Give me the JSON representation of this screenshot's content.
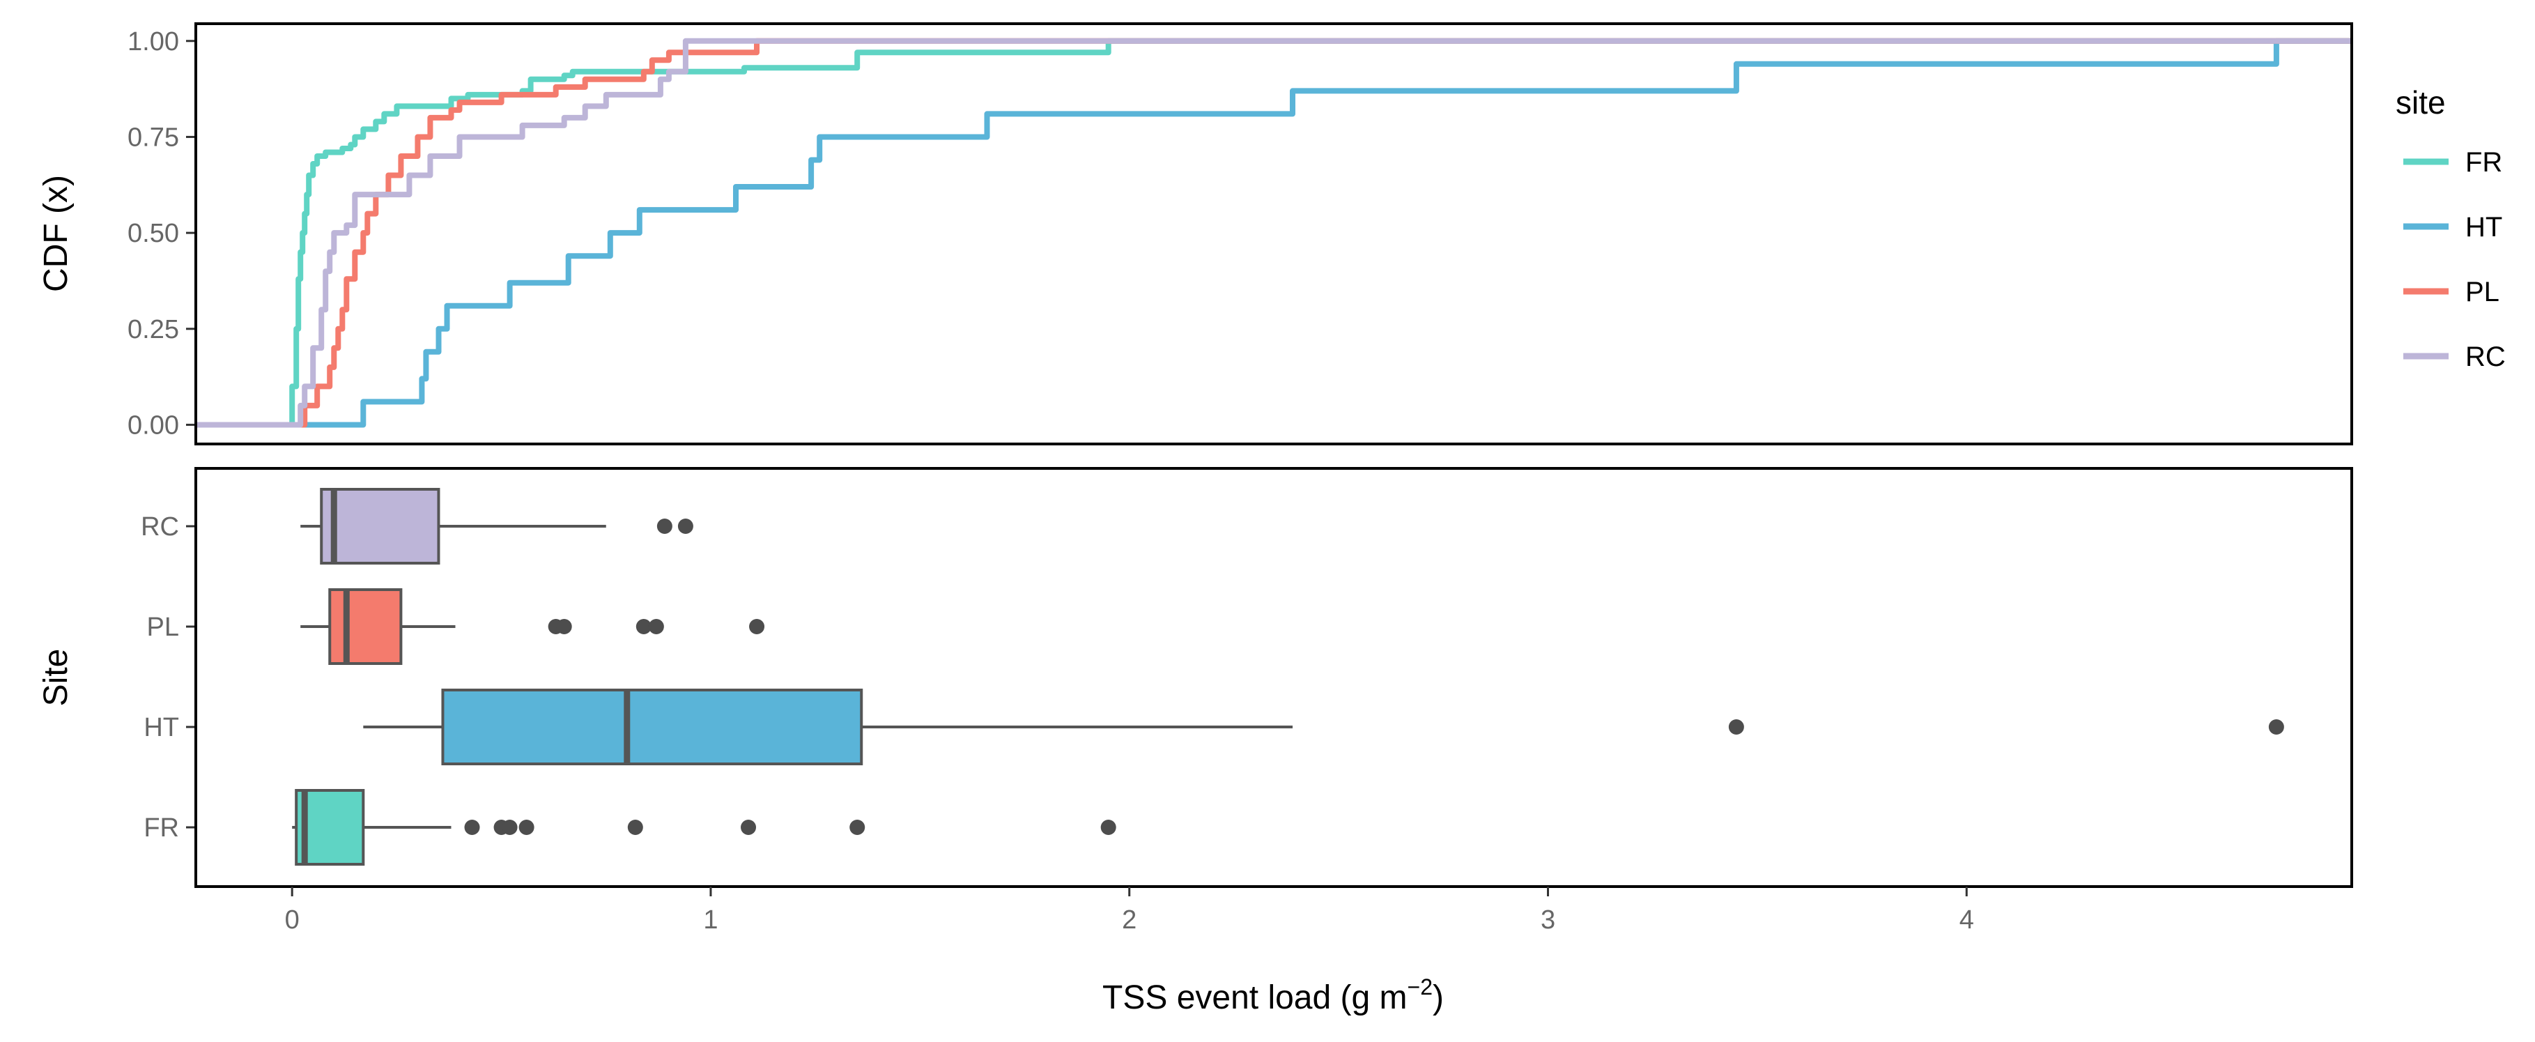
{
  "chart_data": [
    {
      "type": "line",
      "subtype": "ecdf",
      "title": "",
      "xlabel": "",
      "ylabel": "CDF (x)",
      "xlim": [
        -0.23,
        4.92
      ],
      "ylim": [
        -0.05,
        1.045
      ],
      "x_ticks": [
        0,
        1,
        2,
        3,
        4
      ],
      "y_ticks": [
        0,
        0.25,
        0.5,
        0.75,
        1
      ],
      "y_tick_labels": [
        "0.00",
        "0.25",
        "0.50",
        "0.75",
        "1.00"
      ],
      "legend": {
        "title": "site",
        "position": "right",
        "entries": [
          "FR",
          "HT",
          "PL",
          "RC"
        ]
      },
      "series": [
        {
          "name": "FR",
          "color": "#5fd4c4",
          "points": [
            [
              -0.23,
              0
            ],
            [
              0.0,
              0
            ],
            [
              0.0,
              0.1
            ],
            [
              0.01,
              0.25
            ],
            [
              0.015,
              0.38
            ],
            [
              0.02,
              0.45
            ],
            [
              0.025,
              0.5
            ],
            [
              0.03,
              0.55
            ],
            [
              0.035,
              0.6
            ],
            [
              0.04,
              0.65
            ],
            [
              0.05,
              0.68
            ],
            [
              0.06,
              0.7
            ],
            [
              0.08,
              0.71
            ],
            [
              0.12,
              0.72
            ],
            [
              0.14,
              0.73
            ],
            [
              0.15,
              0.75
            ],
            [
              0.17,
              0.77
            ],
            [
              0.2,
              0.79
            ],
            [
              0.22,
              0.81
            ],
            [
              0.25,
              0.83
            ],
            [
              0.35,
              0.83
            ],
            [
              0.38,
              0.85
            ],
            [
              0.42,
              0.86
            ],
            [
              0.55,
              0.87
            ],
            [
              0.57,
              0.9
            ],
            [
              0.65,
              0.91
            ],
            [
              0.67,
              0.92
            ],
            [
              0.82,
              0.92
            ],
            [
              1.08,
              0.93
            ],
            [
              1.35,
              0.97
            ],
            [
              1.95,
              0.99
            ],
            [
              1.95,
              1.0
            ],
            [
              4.92,
              1.0
            ]
          ]
        },
        {
          "name": "HT",
          "color": "#5ab4d8",
          "points": [
            [
              -0.23,
              0
            ],
            [
              0.17,
              0
            ],
            [
              0.17,
              0.06
            ],
            [
              0.31,
              0.06
            ],
            [
              0.31,
              0.12
            ],
            [
              0.32,
              0.12
            ],
            [
              0.32,
              0.19
            ],
            [
              0.35,
              0.19
            ],
            [
              0.35,
              0.25
            ],
            [
              0.37,
              0.25
            ],
            [
              0.37,
              0.31
            ],
            [
              0.52,
              0.31
            ],
            [
              0.52,
              0.37
            ],
            [
              0.66,
              0.37
            ],
            [
              0.66,
              0.44
            ],
            [
              0.76,
              0.44
            ],
            [
              0.76,
              0.5
            ],
            [
              0.83,
              0.5
            ],
            [
              0.83,
              0.56
            ],
            [
              1.06,
              0.56
            ],
            [
              1.06,
              0.62
            ],
            [
              1.24,
              0.62
            ],
            [
              1.24,
              0.69
            ],
            [
              1.26,
              0.69
            ],
            [
              1.26,
              0.75
            ],
            [
              1.66,
              0.75
            ],
            [
              1.66,
              0.81
            ],
            [
              2.39,
              0.81
            ],
            [
              2.39,
              0.87
            ],
            [
              3.45,
              0.87
            ],
            [
              3.45,
              0.94
            ],
            [
              4.74,
              0.94
            ],
            [
              4.74,
              1.0
            ],
            [
              4.92,
              1.0
            ]
          ]
        },
        {
          "name": "PL",
          "color": "#f47b6d",
          "points": [
            [
              -0.23,
              0
            ],
            [
              0.02,
              0
            ],
            [
              0.03,
              0.05
            ],
            [
              0.06,
              0.1
            ],
            [
              0.09,
              0.15
            ],
            [
              0.1,
              0.2
            ],
            [
              0.11,
              0.25
            ],
            [
              0.12,
              0.3
            ],
            [
              0.13,
              0.38
            ],
            [
              0.15,
              0.45
            ],
            [
              0.17,
              0.5
            ],
            [
              0.18,
              0.55
            ],
            [
              0.2,
              0.6
            ],
            [
              0.23,
              0.65
            ],
            [
              0.26,
              0.7
            ],
            [
              0.3,
              0.75
            ],
            [
              0.33,
              0.8
            ],
            [
              0.38,
              0.82
            ],
            [
              0.4,
              0.84
            ],
            [
              0.5,
              0.86
            ],
            [
              0.63,
              0.88
            ],
            [
              0.7,
              0.9
            ],
            [
              0.84,
              0.92
            ],
            [
              0.86,
              0.95
            ],
            [
              0.9,
              0.97
            ],
            [
              1.11,
              0.99
            ],
            [
              1.11,
              1.0
            ],
            [
              4.92,
              1.0
            ]
          ]
        },
        {
          "name": "RC",
          "color": "#bdb5d8",
          "points": [
            [
              -0.23,
              0
            ],
            [
              0.01,
              0
            ],
            [
              0.02,
              0.05
            ],
            [
              0.03,
              0.1
            ],
            [
              0.05,
              0.2
            ],
            [
              0.07,
              0.3
            ],
            [
              0.08,
              0.4
            ],
            [
              0.09,
              0.45
            ],
            [
              0.1,
              0.5
            ],
            [
              0.13,
              0.52
            ],
            [
              0.15,
              0.6
            ],
            [
              0.25,
              0.6
            ],
            [
              0.28,
              0.65
            ],
            [
              0.33,
              0.7
            ],
            [
              0.4,
              0.75
            ],
            [
              0.55,
              0.78
            ],
            [
              0.65,
              0.8
            ],
            [
              0.7,
              0.83
            ],
            [
              0.75,
              0.86
            ],
            [
              0.88,
              0.9
            ],
            [
              0.9,
              0.92
            ],
            [
              0.94,
              0.96
            ],
            [
              0.94,
              1.0
            ],
            [
              4.92,
              1.0
            ]
          ]
        }
      ]
    },
    {
      "type": "boxplot",
      "orientation": "horizontal",
      "xlabel": "TSS event load (g m",
      "xlabel_superscript": "−2",
      "xlabel_suffix": ")",
      "ylabel": "Site",
      "xlim": [
        -0.23,
        4.92
      ],
      "x_ticks": [
        0,
        1,
        2,
        3,
        4
      ],
      "x_tick_labels": [
        "0",
        "1",
        "2",
        "3",
        "4"
      ],
      "categories": [
        "RC",
        "PL",
        "HT",
        "FR"
      ],
      "boxes": [
        {
          "name": "RC",
          "color": "#bdb5d8",
          "whisker_low": 0.02,
          "q1": 0.07,
          "median": 0.1,
          "q3": 0.35,
          "whisker_high": 0.75,
          "outliers": [
            0.89,
            0.94
          ]
        },
        {
          "name": "PL",
          "color": "#f47b6d",
          "whisker_low": 0.02,
          "q1": 0.09,
          "median": 0.13,
          "q3": 0.26,
          "whisker_high": 0.39,
          "outliers": [
            0.63,
            0.65,
            0.84,
            0.87,
            1.11
          ]
        },
        {
          "name": "HT",
          "color": "#5ab4d8",
          "whisker_low": 0.17,
          "q1": 0.36,
          "median": 0.8,
          "q3": 1.36,
          "whisker_high": 2.39,
          "outliers": [
            3.45,
            4.74
          ]
        },
        {
          "name": "FR",
          "color": "#5fd4c4",
          "whisker_low": 0.0,
          "q1": 0.01,
          "median": 0.03,
          "q3": 0.17,
          "whisker_high": 0.38,
          "outliers": [
            0.43,
            0.5,
            0.52,
            0.56,
            0.82,
            1.09,
            1.35,
            1.95
          ]
        }
      ]
    }
  ]
}
